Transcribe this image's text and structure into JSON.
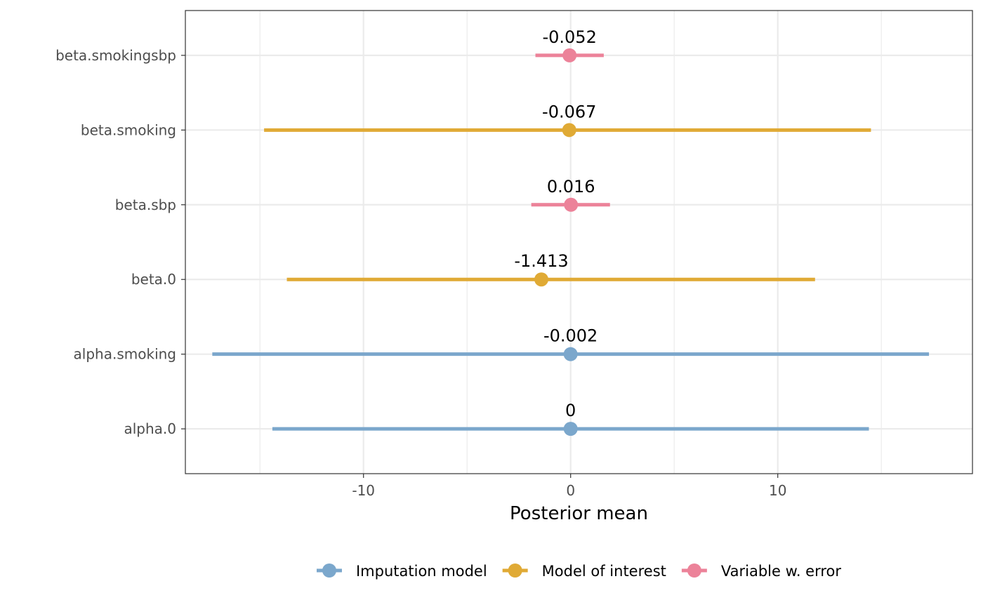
{
  "chart_data": {
    "type": "forest",
    "xlabel": "Posterior mean",
    "ylabel": "",
    "xlim": [
      -18.6,
      19.4
    ],
    "x_ticks": [
      -10,
      0,
      10
    ],
    "x_minor_ticks": [
      -15,
      -5,
      5,
      15
    ],
    "grid": true,
    "legend_position": "bottom",
    "categories": [
      "beta.smokingsbp",
      "beta.smoking",
      "beta.sbp",
      "beta.0",
      "alpha.smoking",
      "alpha.0"
    ],
    "series": [
      {
        "name": "Imputation model",
        "color": "#7ba7cc"
      },
      {
        "name": "Model of interest",
        "color": "#e0aa35"
      },
      {
        "name": "Variable w. error",
        "color": "#ec8299"
      }
    ],
    "points": [
      {
        "category": "beta.smokingsbp",
        "series": "Variable w. error",
        "mean": -0.052,
        "lower": -1.7,
        "upper": 1.6,
        "label": "-0.052"
      },
      {
        "category": "beta.smoking",
        "series": "Model of interest",
        "mean": -0.067,
        "lower": -14.8,
        "upper": 14.5,
        "label": "-0.067"
      },
      {
        "category": "beta.sbp",
        "series": "Variable w. error",
        "mean": 0.016,
        "lower": -1.9,
        "upper": 1.9,
        "label": "0.016"
      },
      {
        "category": "beta.0",
        "series": "Model of interest",
        "mean": -1.413,
        "lower": -13.7,
        "upper": 11.8,
        "label": "-1.413"
      },
      {
        "category": "alpha.smoking",
        "series": "Imputation model",
        "mean": -0.002,
        "lower": -17.3,
        "upper": 17.3,
        "label": "-0.002"
      },
      {
        "category": "alpha.0",
        "series": "Imputation model",
        "mean": 0,
        "lower": -14.4,
        "upper": 14.4,
        "label": "0"
      }
    ]
  }
}
